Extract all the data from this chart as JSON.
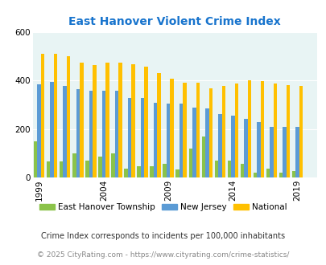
{
  "title": "East Hanover Violent Crime Index",
  "years": [
    1999,
    2000,
    2001,
    2002,
    2003,
    2004,
    2005,
    2006,
    2007,
    2008,
    2009,
    2010,
    2011,
    2012,
    2013,
    2014,
    2015,
    2016,
    2017,
    2018,
    2019
  ],
  "east_hanover": [
    150,
    65,
    65,
    100,
    70,
    85,
    100,
    38,
    48,
    48,
    55,
    35,
    120,
    170,
    70,
    70,
    55,
    20,
    38,
    20,
    28
  ],
  "new_jersey": [
    385,
    395,
    378,
    365,
    358,
    358,
    358,
    328,
    328,
    308,
    305,
    305,
    288,
    283,
    260,
    255,
    243,
    230,
    210,
    208,
    210
  ],
  "national": [
    510,
    510,
    498,
    473,
    462,
    472,
    473,
    465,
    457,
    430,
    408,
    392,
    392,
    368,
    378,
    388,
    400,
    398,
    387,
    380,
    378
  ],
  "bar_colors": {
    "east_hanover": "#8bc34a",
    "new_jersey": "#5b9bd5",
    "national": "#ffc000"
  },
  "plot_bg_color": "#e8f4f4",
  "fig_bg_color": "#ffffff",
  "ylim": [
    0,
    600
  ],
  "yticks": [
    0,
    200,
    400,
    600
  ],
  "xlabel_ticks": [
    1999,
    2004,
    2009,
    2014,
    2019
  ],
  "legend_labels": [
    "East Hanover Township",
    "New Jersey",
    "National"
  ],
  "footnote1": "Crime Index corresponds to incidents per 100,000 inhabitants",
  "footnote2": "© 2025 CityRating.com - https://www.cityrating.com/crime-statistics/",
  "title_color": "#1874CD",
  "footnote1_color": "#333333",
  "footnote2_color": "#888888",
  "bar_width": 0.28,
  "grid_color": "#ffffff"
}
